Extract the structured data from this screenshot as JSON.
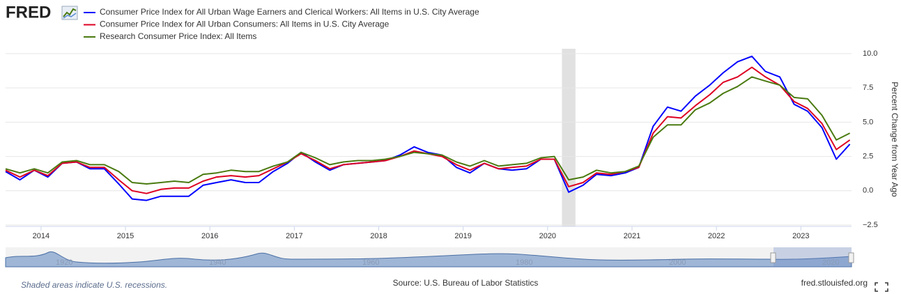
{
  "chart_data": {
    "type": "line",
    "logo": "FRED",
    "x": [
      2013.58,
      2013.75,
      2013.92,
      2014.08,
      2014.25,
      2014.42,
      2014.58,
      2014.75,
      2014.92,
      2015.08,
      2015.25,
      2015.42,
      2015.58,
      2015.75,
      2015.92,
      2016.08,
      2016.25,
      2016.42,
      2016.58,
      2016.75,
      2016.92,
      2017.08,
      2017.25,
      2017.42,
      2017.58,
      2017.75,
      2017.92,
      2018.08,
      2018.25,
      2018.42,
      2018.58,
      2018.75,
      2018.92,
      2019.08,
      2019.25,
      2019.42,
      2019.58,
      2019.75,
      2019.92,
      2020.08,
      2020.25,
      2020.42,
      2020.58,
      2020.75,
      2020.92,
      2021.08,
      2021.25,
      2021.42,
      2021.58,
      2021.75,
      2021.92,
      2022.08,
      2022.25,
      2022.42,
      2022.58,
      2022.75,
      2022.92,
      2023.08,
      2023.25,
      2023.42,
      2023.58
    ],
    "series": [
      {
        "name": "Consumer Price Index for All Urban Wage Earners and Clerical Workers: All Items in U.S. City Average",
        "color": "#0000ff",
        "values": [
          1.4,
          0.8,
          1.5,
          1.0,
          2.0,
          2.1,
          1.6,
          1.6,
          0.5,
          -0.6,
          -0.7,
          -0.4,
          -0.4,
          -0.4,
          0.4,
          0.6,
          0.8,
          0.6,
          0.6,
          1.4,
          2.0,
          2.8,
          2.1,
          1.5,
          1.9,
          2.0,
          2.1,
          2.2,
          2.6,
          3.2,
          2.8,
          2.6,
          1.7,
          1.3,
          2.0,
          1.6,
          1.5,
          1.6,
          2.3,
          2.3,
          -0.1,
          0.4,
          1.2,
          1.1,
          1.3,
          1.7,
          4.7,
          6.1,
          5.8,
          6.9,
          7.7,
          8.6,
          9.4,
          9.8,
          8.7,
          8.3,
          6.3,
          5.8,
          4.6,
          2.3,
          3.4
        ]
      },
      {
        "name": "Consumer Price Index for All Urban Consumers: All Items in U.S. City Average",
        "color": "#dd0022",
        "values": [
          1.5,
          1.0,
          1.5,
          1.1,
          2.0,
          2.1,
          1.7,
          1.7,
          0.8,
          0.0,
          -0.2,
          0.1,
          0.2,
          0.2,
          0.7,
          1.0,
          1.1,
          1.0,
          1.1,
          1.6,
          2.1,
          2.7,
          2.2,
          1.6,
          1.9,
          2.0,
          2.1,
          2.2,
          2.5,
          2.9,
          2.7,
          2.5,
          1.9,
          1.5,
          2.0,
          1.6,
          1.7,
          1.8,
          2.3,
          2.3,
          0.3,
          0.6,
          1.3,
          1.2,
          1.4,
          1.7,
          4.2,
          5.4,
          5.3,
          6.2,
          7.0,
          7.9,
          8.3,
          9.0,
          8.3,
          7.7,
          6.5,
          6.0,
          4.9,
          3.0,
          3.7
        ]
      },
      {
        "name": "Research Consumer Price Index: All Items",
        "color": "#4a7a10",
        "values": [
          1.6,
          1.3,
          1.6,
          1.3,
          2.1,
          2.2,
          1.9,
          1.9,
          1.4,
          0.6,
          0.5,
          0.6,
          0.7,
          0.6,
          1.2,
          1.3,
          1.5,
          1.4,
          1.4,
          1.8,
          2.1,
          2.8,
          2.4,
          1.9,
          2.1,
          2.2,
          2.2,
          2.3,
          2.5,
          2.8,
          2.7,
          2.6,
          2.1,
          1.8,
          2.2,
          1.8,
          1.9,
          2.0,
          2.4,
          2.5,
          0.8,
          1.0,
          1.5,
          1.3,
          1.4,
          1.8,
          3.9,
          4.8,
          4.8,
          5.9,
          6.4,
          7.1,
          7.6,
          8.3,
          8.0,
          7.7,
          6.8,
          6.7,
          5.5,
          3.7,
          4.2
        ]
      }
    ],
    "xlim": [
      2013.58,
      2023.6
    ],
    "xticks": [
      2014,
      2015,
      2016,
      2017,
      2018,
      2019,
      2020,
      2021,
      2022,
      2023
    ],
    "ylim": [
      -2.6,
      10.35
    ],
    "yticks": [
      {
        "value": -2.5,
        "label": "−2.5"
      },
      {
        "value": 0,
        "label": "0.0"
      },
      {
        "value": 2.5,
        "label": "2.5"
      },
      {
        "value": 5,
        "label": "5.0"
      },
      {
        "value": 7.5,
        "label": "7.5"
      },
      {
        "value": 10,
        "label": "10.0"
      }
    ],
    "y_label": "Percent Change from Year Ago",
    "recessions": [
      [
        2020.17,
        2020.33
      ]
    ],
    "grid": true,
    "navigator_labels": [
      "1920",
      "1940",
      "1960",
      "1980",
      "2000",
      "2020"
    ],
    "recession_note": "Shaded areas indicate U.S. recessions.",
    "source": "Source: U.S. Bureau of Labor Statistics",
    "site": "fred.stlouisfed.org"
  }
}
